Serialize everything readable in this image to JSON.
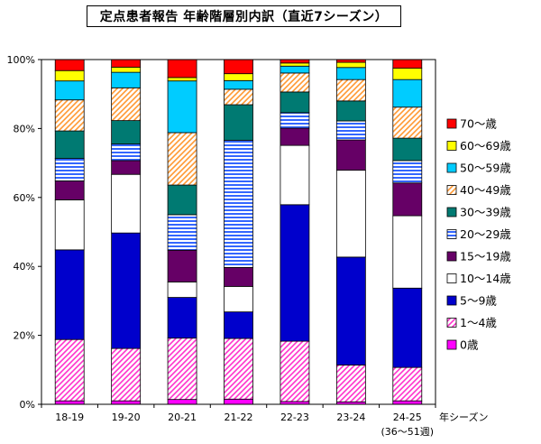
{
  "chart_data": {
    "type": "bar",
    "stacked": "percent",
    "title": "定点患者報告 年齢階層別内訳（直近7シーズン）",
    "xlabel": "年シーズン",
    "ylabel": "",
    "ylim": [
      0,
      100
    ],
    "yticks": [
      "0%",
      "20%",
      "40%",
      "60%",
      "80%",
      "100%"
    ],
    "grid": false,
    "legend_position": "right",
    "categories": [
      "18-19",
      "19-20",
      "20-21",
      "21-22",
      "22-23",
      "23-24",
      "24-25"
    ],
    "category_note": "(36〜51週)",
    "series": [
      {
        "name": "0歳",
        "color": "#ff00ff",
        "pattern": "solid",
        "values": [
          1.0,
          1.0,
          1.4,
          1.5,
          0.8,
          0.7,
          1.0
        ]
      },
      {
        "name": "1〜4歳",
        "color": "#ff33cc",
        "pattern": "diagonal",
        "values": [
          17.8,
          15.2,
          17.8,
          17.6,
          17.5,
          10.7,
          9.7
        ]
      },
      {
        "name": "5〜9歳",
        "color": "#0000cc",
        "pattern": "solid",
        "values": [
          26.0,
          33.5,
          11.8,
          7.7,
          39.6,
          31.3,
          23.0
        ]
      },
      {
        "name": "10〜14歳",
        "color": "#ffffff",
        "pattern": "solid",
        "values": [
          14.5,
          17.0,
          4.5,
          7.4,
          17.2,
          25.2,
          21.0
        ]
      },
      {
        "name": "15〜19歳",
        "color": "#660066",
        "pattern": "solid",
        "values": [
          5.5,
          4.0,
          9.2,
          5.5,
          5.0,
          8.8,
          9.5
        ]
      },
      {
        "name": "20〜29歳",
        "color": "#3366ff",
        "pattern": "horizontal",
        "values": [
          6.5,
          4.8,
          10.3,
          36.9,
          4.5,
          5.5,
          6.5
        ]
      },
      {
        "name": "30〜39歳",
        "color": "#007a72",
        "pattern": "solid",
        "values": [
          8.0,
          6.8,
          8.6,
          10.3,
          6.0,
          5.8,
          6.5
        ]
      },
      {
        "name": "40〜49歳",
        "color": "#ff9933",
        "pattern": "diagonal",
        "values": [
          9.0,
          9.5,
          15.2,
          4.5,
          5.5,
          6.2,
          9.0
        ]
      },
      {
        "name": "50〜59歳",
        "color": "#00ccff",
        "pattern": "solid",
        "values": [
          5.5,
          4.5,
          15.0,
          2.5,
          2.0,
          3.5,
          8.0
        ]
      },
      {
        "name": "60〜69歳",
        "color": "#ffff00",
        "pattern": "solid",
        "values": [
          3.0,
          1.5,
          1.0,
          2.0,
          0.9,
          1.5,
          3.3
        ]
      },
      {
        "name": "70〜歳",
        "color": "#ff0000",
        "pattern": "solid",
        "values": [
          3.2,
          2.2,
          5.2,
          4.1,
          1.0,
          0.8,
          2.5
        ]
      }
    ]
  }
}
